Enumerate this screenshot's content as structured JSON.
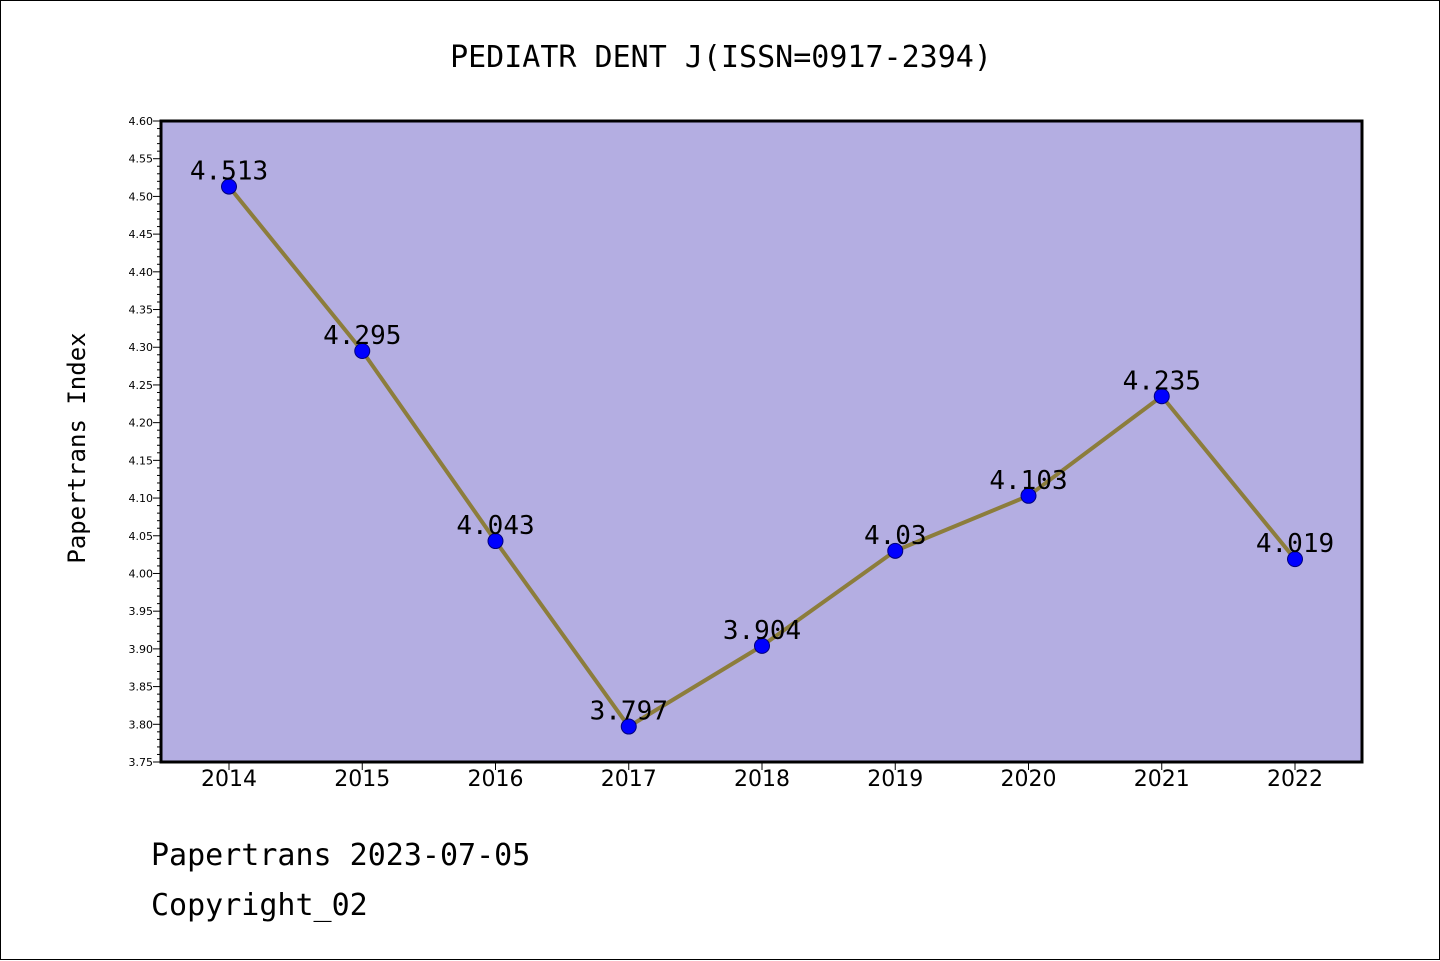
{
  "chart_data": {
    "type": "line",
    "title": "PEDIATR DENT J(ISSN=0917-2394)",
    "xlabel": "",
    "ylabel": "Papertrans Index",
    "x": [
      "2014",
      "2015",
      "2016",
      "2017",
      "2018",
      "2019",
      "2020",
      "2021",
      "2022"
    ],
    "values": [
      4.513,
      4.295,
      4.043,
      3.797,
      3.904,
      4.03,
      4.103,
      4.235,
      4.019
    ],
    "data_labels": [
      "4.513",
      "4.295",
      "4.043",
      "3.797",
      "3.904",
      "4.03",
      "4.103",
      "4.235",
      "4.019"
    ],
    "ylim": [
      3.75,
      4.6
    ],
    "yticks": [
      "3.75",
      "3.80",
      "3.85",
      "3.90",
      "3.95",
      "4.00",
      "4.05",
      "4.10",
      "4.15",
      "4.20",
      "4.25",
      "4.30",
      "4.35",
      "4.40",
      "4.45",
      "4.50",
      "4.55",
      "4.60"
    ],
    "grid": false,
    "colors": {
      "plot_background": "#b4aee2",
      "line": "#8c7d3c",
      "marker": "#0000ff"
    }
  },
  "footer": {
    "line1": "Papertrans 2023-07-05",
    "line2": "Copyright_02"
  }
}
